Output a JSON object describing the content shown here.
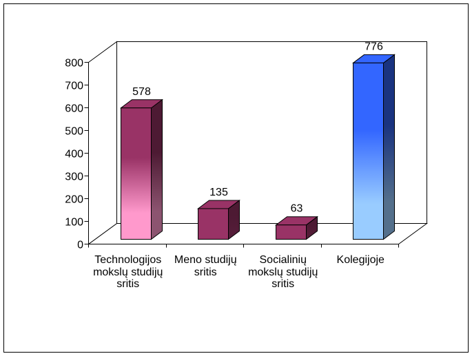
{
  "chart_data": {
    "type": "bar",
    "three_d": true,
    "categories": [
      "Technologijos mokslų studijų sritis",
      "Meno studijų sritis",
      "Socialinių mokslų studijų sritis",
      "Kolegijoje"
    ],
    "values": [
      578,
      135,
      63,
      776
    ],
    "ylim": [
      0,
      800
    ],
    "yticks": [
      0,
      100,
      200,
      300,
      400,
      500,
      600,
      700,
      800
    ],
    "grid": false,
    "legend": false,
    "bar_colors": [
      "#993366",
      "#993366",
      "#993366",
      "#3366ff"
    ],
    "bar_gradient_end_colors": [
      "#ff99cc",
      "#993366",
      "#993366",
      "#99ccff"
    ]
  }
}
